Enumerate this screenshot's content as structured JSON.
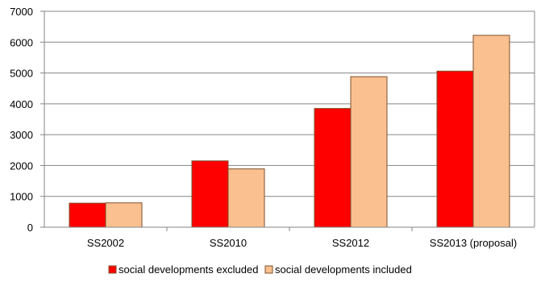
{
  "chart_data": {
    "type": "bar",
    "categories": [
      "SS2002",
      "SS2010",
      "SS2012",
      "SS2013 (proposal)"
    ],
    "series": [
      {
        "name": "social developments excluded",
        "color": "#ff0000",
        "values": [
          780,
          2150,
          3850,
          5060
        ]
      },
      {
        "name": "social developments included",
        "color": "#fac090",
        "values": [
          790,
          1890,
          4880,
          6220
        ]
      }
    ],
    "ylim": [
      0,
      7000
    ],
    "yticks": [
      0,
      1000,
      2000,
      3000,
      4000,
      5000,
      6000,
      7000
    ],
    "grid": true,
    "legend_position": "bottom",
    "bar_outline_color": "#7f4f2a"
  }
}
